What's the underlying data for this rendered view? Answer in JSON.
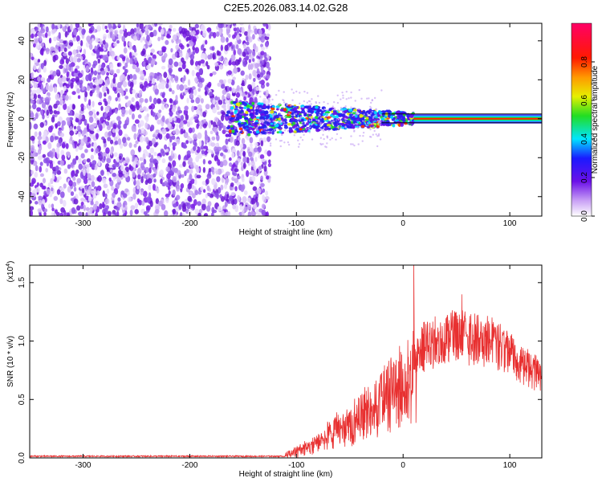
{
  "title": "C2E5.2026.083.14.02.G28",
  "colors": {
    "snr_line": "#e83030",
    "axis": "#000000",
    "scatter_purple": "#7a1fe6"
  },
  "chart_data": [
    {
      "type": "heatmap",
      "xlabel": "Height of straight line (km)",
      "ylabel": "Frequency (Hz)",
      "xlim": [
        -350,
        130
      ],
      "ylim": [
        -50,
        49
      ],
      "x_ticks": [
        -300,
        -200,
        -100,
        0,
        100
      ],
      "x_tick_labels": [
        "-300",
        "-200",
        "-100",
        "0",
        "100"
      ],
      "y_ticks": [
        40,
        20,
        0,
        -20,
        -40
      ],
      "y_tick_labels": [
        "40",
        "20",
        "0",
        "-20",
        "-40"
      ],
      "colorbar": {
        "label": "Normalized spectral amplitude",
        "range": [
          0,
          1
        ],
        "colormap": "rainbow (white-violet-blue-cyan-green-yellow-red-magenta)",
        "ticks": [
          0.0,
          0.2,
          0.4,
          0.6,
          0.8
        ],
        "tick_labels": [
          "0.0",
          "0.2",
          "0.4",
          "0.6",
          "0.8"
        ]
      },
      "regions": [
        {
          "description_x": [
            -350,
            -125
          ],
          "frequency_spread_hz": [
            -50,
            49
          ],
          "amplitude": 0.15
        },
        {
          "description_x": [
            -160,
            10
          ],
          "frequency_spread_hz": [
            -8,
            8
          ],
          "amplitude": 0.45
        },
        {
          "description_x": [
            10,
            130
          ],
          "frequency_spread_hz": [
            -2,
            2
          ],
          "amplitude": 0.9
        }
      ],
      "grid": false
    },
    {
      "type": "line",
      "xlabel": "Height of straight line (km)",
      "ylabel": "SNR (10 * v/v)",
      "y_multiplier_label": "(x10",
      "y_multiplier_exp": "4",
      "xlim": [
        -350,
        130
      ],
      "ylim": [
        0,
        1.65
      ],
      "x_ticks": [
        -300,
        -200,
        -100,
        0,
        100
      ],
      "x_tick_labels": [
        "-300",
        "-200",
        "-100",
        "0",
        "100"
      ],
      "y_ticks": [
        0.0,
        0.5,
        1.0,
        1.5
      ],
      "y_tick_labels": [
        "0.0",
        "0.5",
        "1.0",
        "1.5"
      ],
      "series": [
        {
          "x": [
            -350,
            -300,
            -250,
            -200,
            -150,
            -110,
            -100,
            -90,
            -80,
            -70,
            -60,
            -50,
            -40,
            -30,
            -20,
            -10,
            0,
            10,
            20,
            30,
            40,
            50,
            60,
            70,
            80,
            90,
            100,
            110,
            120,
            130
          ],
          "y": [
            0.01,
            0.01,
            0.01,
            0.01,
            0.01,
            0.02,
            0.08,
            0.15,
            0.22,
            0.3,
            0.38,
            0.46,
            0.55,
            0.65,
            0.75,
            0.88,
            0.98,
            1.08,
            1.15,
            1.2,
            1.24,
            1.26,
            1.25,
            1.23,
            1.2,
            1.15,
            1.1,
            1.0,
            0.92,
            0.82
          ]
        }
      ],
      "annotations": [
        {
          "x": 10,
          "y": 1.68,
          "note": "spike"
        },
        {
          "x": 12,
          "y": 0.3,
          "note": "dip"
        },
        {
          "x": 55,
          "y": 1.4,
          "note": "peak"
        }
      ],
      "grid": false
    }
  ]
}
